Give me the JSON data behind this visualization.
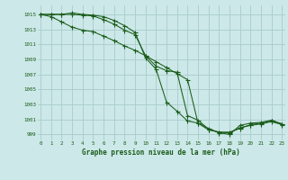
{
  "bg_color": "#cce8e8",
  "grid_color": "#aacccc",
  "line_color": "#1a5c1a",
  "title": "Graphe pression niveau de la mer (hPa)",
  "x_ticks": [
    0,
    1,
    2,
    3,
    4,
    5,
    6,
    7,
    8,
    9,
    10,
    11,
    12,
    13,
    14,
    15,
    16,
    17,
    18,
    19,
    20,
    21,
    22,
    23
  ],
  "y_ticks": [
    999,
    1001,
    1003,
    1005,
    1007,
    1009,
    1011,
    1013,
    1015
  ],
  "ylim": [
    998.2,
    1016.2
  ],
  "xlim": [
    -0.3,
    23.3
  ],
  "line1": [
    1015.0,
    1015.0,
    1015.0,
    1015.2,
    1015.0,
    1014.9,
    1014.7,
    1014.2,
    1013.5,
    1012.6,
    1009.2,
    1007.7,
    1003.3,
    1002.1,
    1000.8,
    1000.5,
    999.6,
    999.3,
    999.3,
    999.8,
    1000.3,
    1000.5,
    1000.8,
    1000.4
  ],
  "line2": [
    1015.0,
    1015.0,
    1015.0,
    1015.0,
    1014.9,
    1014.8,
    1014.3,
    1013.7,
    1012.9,
    1012.3,
    1009.5,
    1008.1,
    1007.5,
    1007.3,
    1001.5,
    1000.9,
    999.7,
    999.3,
    999.2,
    999.9,
    1000.2,
    1000.4,
    1000.7,
    1000.3
  ],
  "line3": [
    1015.0,
    1014.7,
    1014.0,
    1013.3,
    1012.9,
    1012.7,
    1012.1,
    1011.5,
    1010.8,
    1010.2,
    1009.5,
    1008.7,
    1007.9,
    1007.1,
    1006.3,
    1000.5,
    999.8,
    999.2,
    999.0,
    1000.2,
    1000.5,
    1000.6,
    1000.9,
    1000.4
  ]
}
